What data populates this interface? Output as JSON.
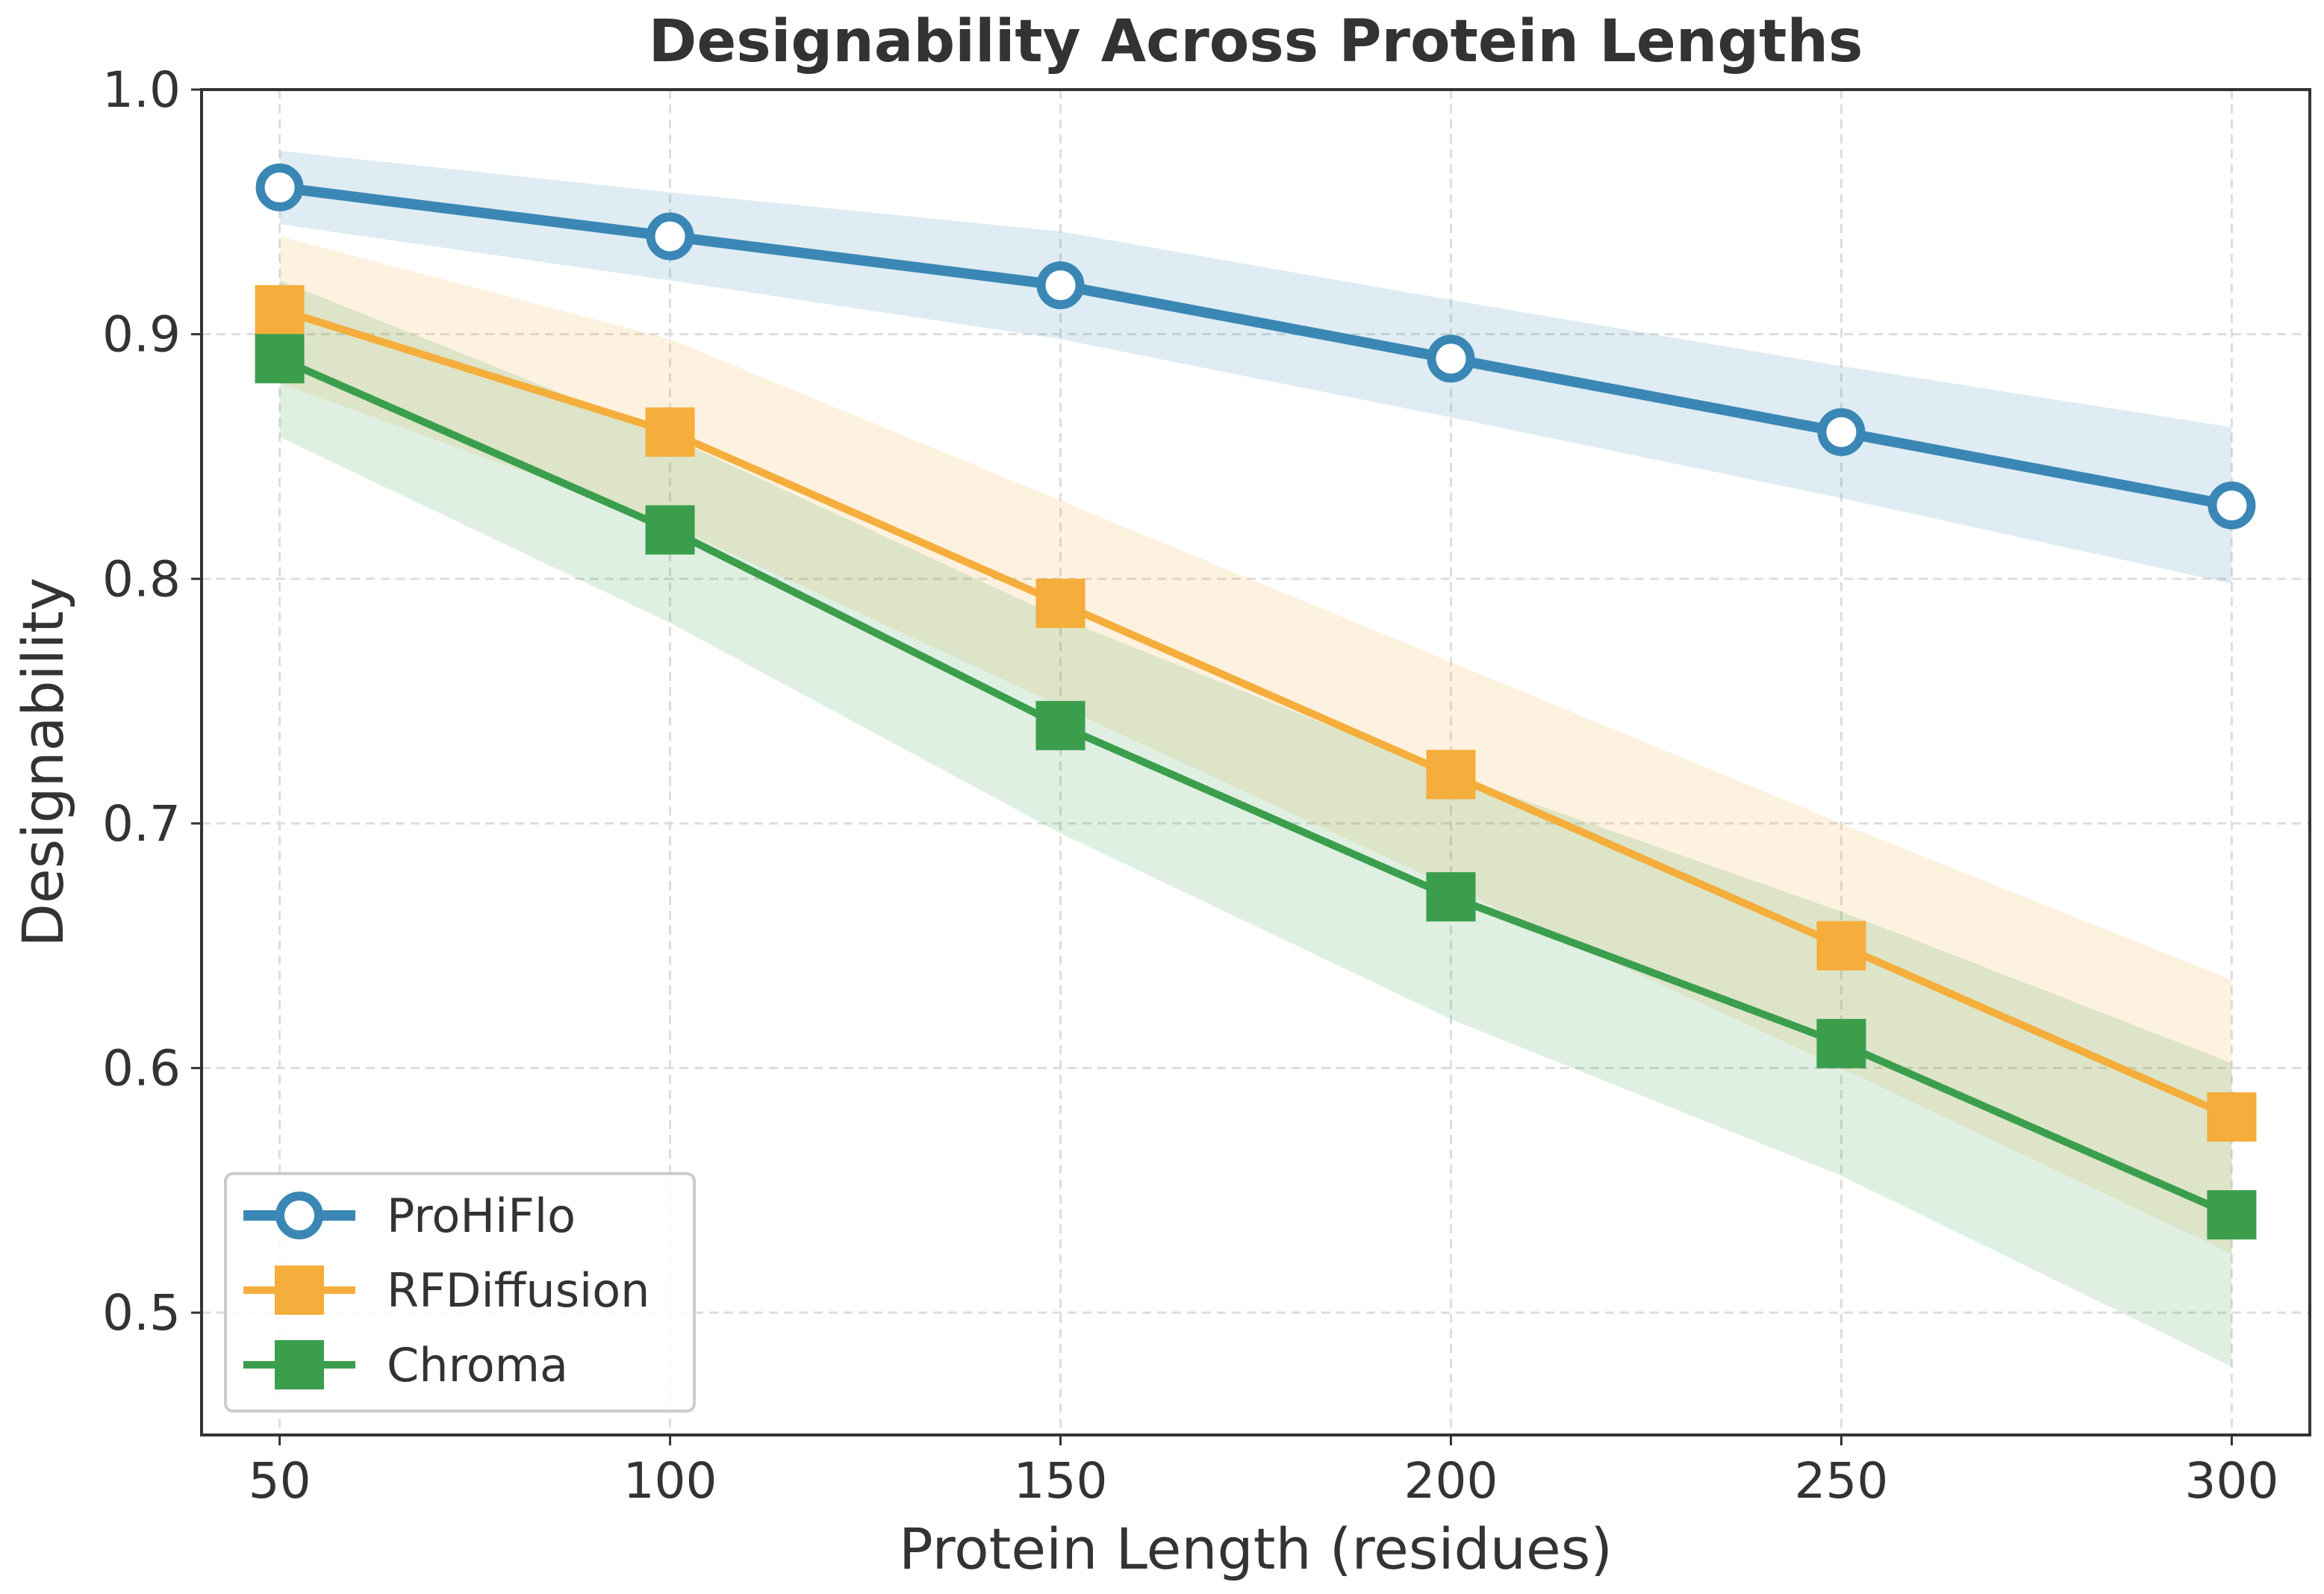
{
  "chart_data": {
    "type": "line",
    "title": "Designability Across Protein Lengths",
    "xlabel": "Protein Length (residues)",
    "ylabel": "Designability",
    "x": [
      50,
      100,
      150,
      200,
      250,
      300
    ],
    "xlim": [
      40,
      310
    ],
    "ylim": [
      0.45,
      1.0
    ],
    "xticks": [
      "50",
      "100",
      "150",
      "200",
      "250",
      "300"
    ],
    "yticks": [
      "0.5",
      "0.6",
      "0.7",
      "0.8",
      "0.9",
      "1.0"
    ],
    "grid": true,
    "legend_position": "lower-left",
    "series": [
      {
        "name": "ProHiFlo",
        "color": "#3a87b5",
        "marker": "circle-open",
        "values": [
          0.96,
          0.94,
          0.92,
          0.89,
          0.86,
          0.83
        ],
        "band_low": [
          0.945,
          0.922,
          0.898,
          0.866,
          0.833,
          0.798
        ],
        "band_high": [
          0.975,
          0.958,
          0.942,
          0.914,
          0.887,
          0.862
        ]
      },
      {
        "name": "RFDiffusion",
        "color": "#f5ad3b",
        "marker": "square",
        "values": [
          0.91,
          0.86,
          0.79,
          0.72,
          0.65,
          0.58
        ],
        "band_low": [
          0.88,
          0.822,
          0.748,
          0.674,
          0.6,
          0.524
        ],
        "band_high": [
          0.94,
          0.898,
          0.832,
          0.766,
          0.7,
          0.636
        ]
      },
      {
        "name": "Chroma",
        "color": "#3a9e4d",
        "marker": "square",
        "values": [
          0.89,
          0.82,
          0.74,
          0.67,
          0.61,
          0.54
        ],
        "band_low": [
          0.858,
          0.782,
          0.696,
          0.62,
          0.556,
          0.478
        ],
        "band_high": [
          0.922,
          0.858,
          0.784,
          0.72,
          0.664,
          0.602
        ]
      }
    ]
  }
}
